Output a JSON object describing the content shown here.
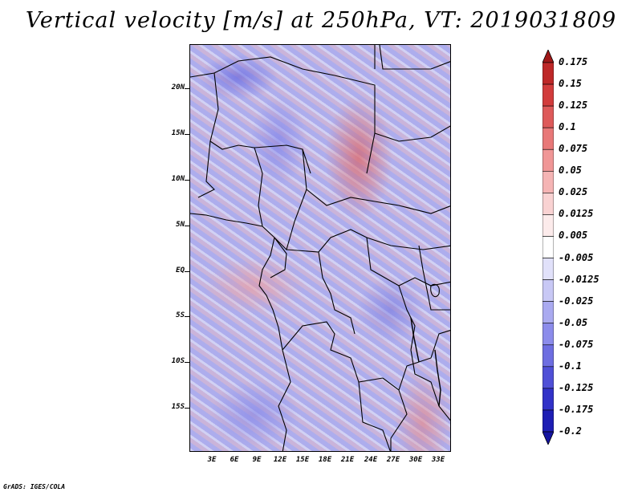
{
  "title": "Vertical velocity [m/s] at 250hPa, VT: 2019031809",
  "y_axis_labels": [
    "20N",
    "15N",
    "10N",
    "5N",
    "EQ",
    "5S",
    "10S",
    "15S"
  ],
  "x_axis_labels": [
    "3E",
    "6E",
    "9E",
    "12E",
    "15E",
    "18E",
    "21E",
    "24E",
    "27E",
    "30E",
    "33E"
  ],
  "colorbar": {
    "levels": [
      "0.175",
      "0.15",
      "0.125",
      "0.1",
      "0.075",
      "0.05",
      "0.025",
      "0.0125",
      "0.005",
      "-0.005",
      "-0.0125",
      "-0.025",
      "-0.05",
      "-0.075",
      "-0.1",
      "-0.125",
      "-0.175",
      "-0.2"
    ],
    "colors": [
      "#a01818",
      "#be2828",
      "#d23c3c",
      "#de5a5a",
      "#e87878",
      "#f09696",
      "#f5b4b4",
      "#f9d2d2",
      "#fcebeb",
      "#ffffff",
      "#e1e1fa",
      "#c8c8f5",
      "#aaaaf0",
      "#8c8ceb",
      "#6e6ee1",
      "#5050d7",
      "#3232c8",
      "#1e1eb4",
      "#1414a0"
    ]
  },
  "credit": "GrADS: IGES/COLA"
}
